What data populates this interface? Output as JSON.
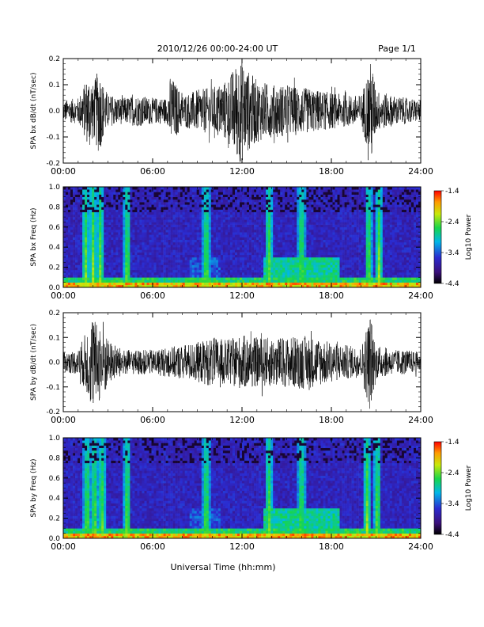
{
  "header": {
    "title": "2010/12/26  00:00-24:00 UT",
    "page": "Page 1/1"
  },
  "x_axis_title": "Universal Time (hh:mm)",
  "chart_data": [
    {
      "type": "line",
      "ylabel": "SPA bx dB/dt (nT/sec)",
      "ylim": [
        -0.2,
        0.2
      ],
      "yticks": [
        "0.2",
        "0.1",
        "0.0",
        "-0.1",
        "-0.2"
      ],
      "xticks": [
        "00:00",
        "06:00",
        "12:00",
        "18:00",
        "24:00"
      ],
      "xlim_hours": [
        0,
        24
      ],
      "envelope": {
        "x_hours": [
          0,
          1,
          1.8,
          2.0,
          2.4,
          2.6,
          3.0,
          4,
          5,
          6,
          7,
          7.2,
          8,
          9,
          10,
          11,
          11.8,
          12,
          12.2,
          13,
          14,
          15,
          16,
          17,
          18,
          19,
          20,
          20.7,
          21,
          22,
          23,
          24
        ],
        "amplitude": [
          0.04,
          0.05,
          0.15,
          0.1,
          0.17,
          0.12,
          0.06,
          0.05,
          0.06,
          0.05,
          0.05,
          0.14,
          0.06,
          0.08,
          0.09,
          0.12,
          0.2,
          0.2,
          0.17,
          0.12,
          0.1,
          0.1,
          0.09,
          0.08,
          0.07,
          0.06,
          0.06,
          0.2,
          0.08,
          0.06,
          0.05,
          0.04
        ]
      }
    },
    {
      "type": "heatmap",
      "ylabel": "SPA bx Freq (Hz)",
      "ylim": [
        0,
        1.0
      ],
      "yticks": [
        "1.0",
        "0.8",
        "0.6",
        "0.4",
        "0.2",
        "0.0"
      ],
      "xticks": [
        "00:00",
        "06:00",
        "12:00",
        "18:00",
        "24:00"
      ],
      "colorbar": {
        "label": "Log10 Power",
        "ticks": [
          "-1.4",
          "-2.4",
          "-3.4",
          "-4.4"
        ],
        "range": [
          -4.4,
          -1.4
        ]
      },
      "bursts_hours": [
        1.5,
        2.0,
        2.5,
        4.3,
        9.6,
        13.8,
        16.0,
        20.5,
        21.2
      ]
    },
    {
      "type": "line",
      "ylabel": "SPA by dB/dt (nT/sec)",
      "ylim": [
        -0.2,
        0.2
      ],
      "yticks": [
        "0.2",
        "0.1",
        "0.0",
        "-0.1",
        "-0.2"
      ],
      "xticks": [
        "00:00",
        "06:00",
        "12:00",
        "18:00",
        "24:00"
      ],
      "xlim_hours": [
        0,
        24
      ],
      "envelope": {
        "x_hours": [
          0,
          1,
          1.5,
          2.0,
          2.3,
          2.6,
          3.0,
          4,
          5,
          6,
          7,
          8,
          9,
          10,
          11,
          12,
          13,
          14,
          15,
          16,
          17,
          18,
          19,
          20,
          20.6,
          21,
          22,
          23,
          24
        ],
        "amplitude": [
          0.04,
          0.05,
          0.12,
          0.2,
          0.14,
          0.2,
          0.09,
          0.05,
          0.05,
          0.05,
          0.06,
          0.07,
          0.08,
          0.1,
          0.09,
          0.11,
          0.1,
          0.1,
          0.1,
          0.11,
          0.1,
          0.08,
          0.07,
          0.06,
          0.2,
          0.07,
          0.05,
          0.05,
          0.04
        ]
      }
    },
    {
      "type": "heatmap",
      "ylabel": "SPA by Freq (Hz)",
      "ylim": [
        0,
        1.0
      ],
      "yticks": [
        "1.0",
        "0.8",
        "0.6",
        "0.4",
        "0.2",
        "0.0"
      ],
      "xticks": [
        "00:00",
        "06:00",
        "12:00",
        "18:00",
        "24:00"
      ],
      "colorbar": {
        "label": "Log10 Power",
        "ticks": [
          "-1.4",
          "-2.4",
          "-3.4",
          "-4.4"
        ],
        "range": [
          -4.4,
          -1.4
        ]
      },
      "bursts_hours": [
        1.6,
        2.1,
        2.6,
        4.3,
        9.6,
        13.8,
        16.0,
        20.4,
        21.1
      ]
    }
  ]
}
